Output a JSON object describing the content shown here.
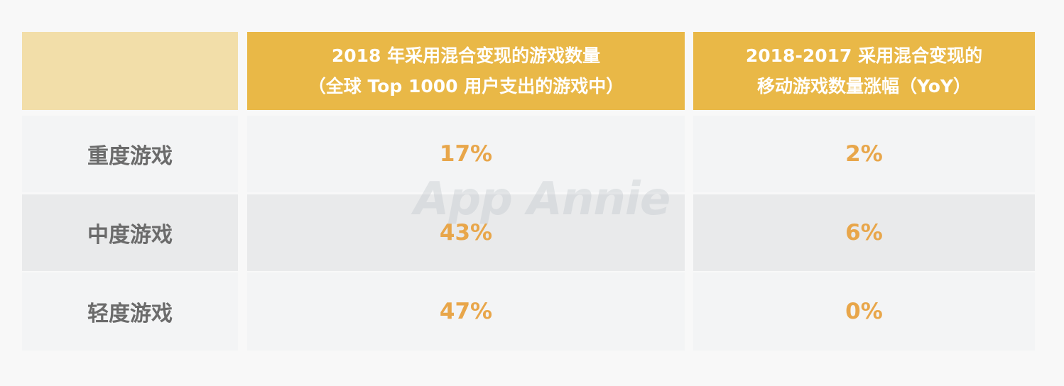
{
  "chart_data": {
    "type": "table",
    "columns": [
      {
        "line1": "2018 年采用混合变现的游戏数量",
        "line2": "（全球 Top 1000 用户支出的游戏中）"
      },
      {
        "line1": "2018-2017 采用混合变现的",
        "line2": "移动游戏数量涨幅（YoY）"
      }
    ],
    "rows": [
      {
        "label": "重度游戏",
        "values": [
          "17%",
          "2%"
        ]
      },
      {
        "label": "中度游戏",
        "values": [
          "43%",
          "6%"
        ]
      },
      {
        "label": "轻度游戏",
        "values": [
          "47%",
          "0%"
        ]
      }
    ]
  },
  "watermark": "App Annie",
  "colors": {
    "header_bg": "#e9b847",
    "corner_bg": "#f2dea9",
    "row_light": "#f3f4f5",
    "row_dark": "#e9eaeb",
    "value_text": "#e8a64a",
    "label_text": "#6b6b6b"
  }
}
